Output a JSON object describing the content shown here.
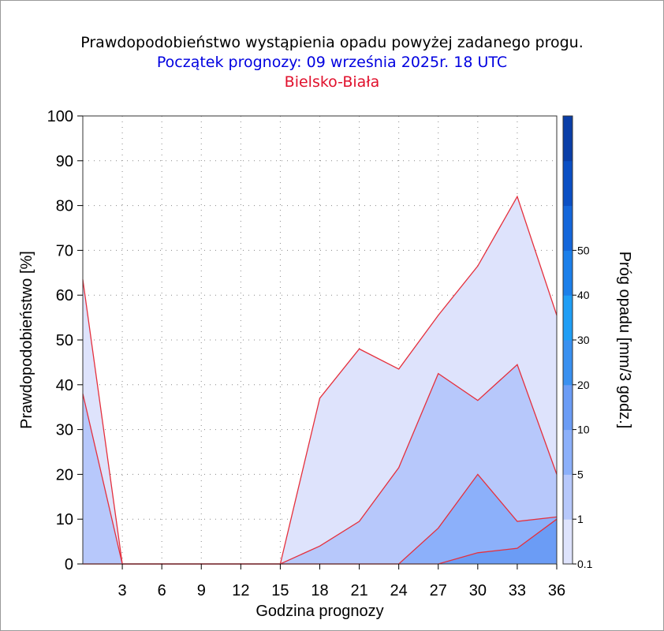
{
  "title": "Prawdopodobieństwo wystąpienia opadu powyżej zadanego progu.",
  "subtitle": "Początek prognozy: 09 września 2025r. 18 UTC",
  "location": "Bielsko-Biała",
  "chart_data": {
    "type": "area",
    "xlabel": "Godzina prognozy",
    "ylabel": "Prawdopodobieństwo [%]",
    "x": [
      0,
      3,
      6,
      9,
      12,
      15,
      18,
      21,
      24,
      27,
      30,
      33,
      36
    ],
    "xticks": [
      "3",
      "6",
      "9",
      "12",
      "15",
      "18",
      "21",
      "24",
      "27",
      "30",
      "33",
      "36"
    ],
    "xlim": [
      0,
      36
    ],
    "ylim": [
      0,
      100
    ],
    "yticks": [
      "0",
      "10",
      "20",
      "30",
      "40",
      "50",
      "60",
      "70",
      "80",
      "90",
      "100"
    ],
    "grid": true,
    "series": [
      {
        "name": "0.1",
        "color": "#dee3fc",
        "values": [
          63.5,
          0,
          0,
          0,
          0,
          0,
          37,
          48,
          43.5,
          55.5,
          66.5,
          82,
          55.5
        ]
      },
      {
        "name": "1",
        "color": "#b7c8fb",
        "values": [
          38,
          0,
          0,
          0,
          0,
          0,
          4,
          9.5,
          21.5,
          42.5,
          36.5,
          44.5,
          20
        ]
      },
      {
        "name": "5",
        "color": "#8cb0fa",
        "values": [
          0,
          0,
          0,
          0,
          0,
          0,
          0,
          0,
          0,
          8,
          20,
          9.5,
          10.5
        ]
      },
      {
        "name": "10",
        "color": "#6b9cf5",
        "values": [
          0,
          0,
          0,
          0,
          0,
          0,
          0,
          0,
          0,
          0,
          2.5,
          3.5,
          10
        ]
      }
    ],
    "colorbar": {
      "label": "Próg opadu [mm/3 godz.]",
      "ticks": [
        "0.1",
        "1",
        "5",
        "10",
        "20",
        "30",
        "40",
        "50"
      ],
      "colors": [
        "#dee3fc",
        "#b7c8fb",
        "#8cb0fa",
        "#6b9cf5",
        "#3990f0",
        "#1f9ef5",
        "#1b7fea",
        "#1466da",
        "#0b4fc4",
        "#0a3ea7"
      ]
    }
  }
}
